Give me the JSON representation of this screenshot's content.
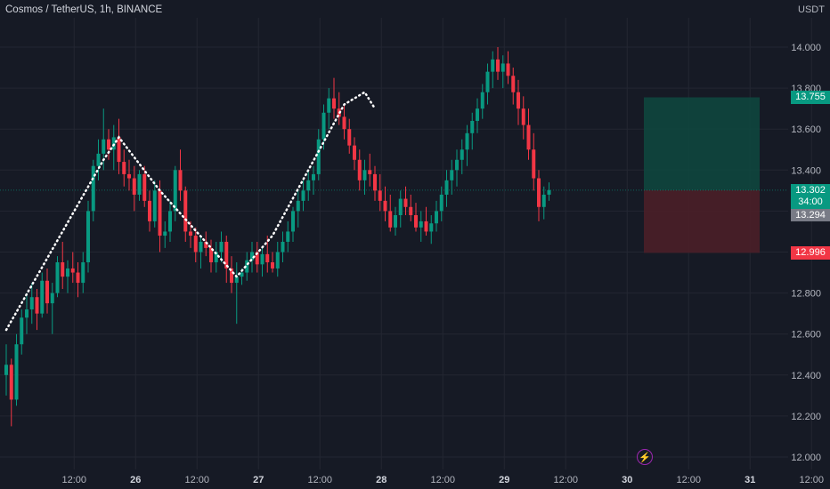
{
  "header": {
    "title": "Cosmos / TetherUS, 1h, BINANCE",
    "unit": "USDT"
  },
  "colors": {
    "bg": "#161a25",
    "grid": "#232632",
    "up": "#089981",
    "down": "#f23645",
    "zone_profit": "#0e4940",
    "zone_loss": "#4a1f28",
    "path": "#ffffff"
  },
  "icons": {
    "alert": "lightning-bolt-icon"
  },
  "price_labels": {
    "current": "13.302",
    "countdown": "34:00",
    "last_close": "13.294",
    "target": "13.755",
    "stop": "12.996"
  },
  "chart_data": {
    "type": "candlestick",
    "title": "Cosmos / TetherUS, 1h, BINANCE",
    "ylabel": "USDT",
    "ylim": [
      11.98,
      14.15
    ],
    "y_ticks": [
      "14.000",
      "13.800",
      "13.600",
      "13.400",
      "13.200",
      "13.000",
      "12.800",
      "12.600",
      "12.400",
      "12.200",
      "12.000"
    ],
    "x_ticks": [
      {
        "label": "12:00",
        "bar": 7
      },
      {
        "label": "26",
        "bar": 19
      },
      {
        "label": "12:00",
        "bar": 31
      },
      {
        "label": "27",
        "bar": 43
      },
      {
        "label": "12:00",
        "bar": 55
      },
      {
        "label": "28",
        "bar": 67
      },
      {
        "label": "12:00",
        "bar": 79
      },
      {
        "label": "29",
        "bar": 91
      },
      {
        "label": "12:00",
        "bar": 103
      },
      {
        "label": "30",
        "bar": 115
      },
      {
        "label": "12:00",
        "bar": 127
      },
      {
        "label": "31",
        "bar": 139
      },
      {
        "label": "12:00",
        "bar": 151
      }
    ],
    "bold_ticks": [
      "26",
      "27",
      "28",
      "29",
      "30",
      "31"
    ],
    "candles": [
      [
        12.4,
        12.55,
        12.3,
        12.45
      ],
      [
        12.45,
        12.48,
        12.15,
        12.28
      ],
      [
        12.28,
        12.6,
        12.25,
        12.55
      ],
      [
        12.55,
        12.72,
        12.5,
        12.68
      ],
      [
        12.68,
        12.8,
        12.6,
        12.72
      ],
      [
        12.72,
        12.85,
        12.65,
        12.78
      ],
      [
        12.78,
        12.82,
        12.62,
        12.7
      ],
      [
        12.7,
        12.9,
        12.68,
        12.86
      ],
      [
        12.86,
        12.92,
        12.7,
        12.75
      ],
      [
        12.75,
        12.85,
        12.6,
        12.8
      ],
      [
        12.8,
        12.98,
        12.78,
        12.95
      ],
      [
        12.95,
        13.05,
        12.82,
        12.88
      ],
      [
        12.88,
        12.96,
        12.8,
        12.92
      ],
      [
        12.92,
        13.0,
        12.85,
        12.9
      ],
      [
        12.9,
        12.95,
        12.78,
        12.85
      ],
      [
        12.85,
        13.0,
        12.8,
        12.95
      ],
      [
        12.95,
        13.25,
        12.9,
        13.2
      ],
      [
        13.2,
        13.45,
        13.15,
        13.42
      ],
      [
        13.42,
        13.55,
        13.35,
        13.48
      ],
      [
        13.48,
        13.7,
        13.4,
        13.55
      ],
      [
        13.55,
        13.6,
        13.45,
        13.5
      ],
      [
        13.5,
        13.62,
        13.4,
        13.56
      ],
      [
        13.56,
        13.65,
        13.38,
        13.44
      ],
      [
        13.44,
        13.5,
        13.32,
        13.38
      ],
      [
        13.38,
        13.45,
        13.3,
        13.36
      ],
      [
        13.36,
        13.42,
        13.2,
        13.28
      ],
      [
        13.28,
        13.4,
        13.25,
        13.38
      ],
      [
        13.38,
        13.42,
        13.22,
        13.25
      ],
      [
        13.25,
        13.3,
        13.1,
        13.15
      ],
      [
        13.15,
        13.35,
        13.12,
        13.3
      ],
      [
        13.3,
        13.35,
        13.0,
        13.08
      ],
      [
        13.08,
        13.15,
        13.02,
        13.1
      ],
      [
        13.1,
        13.25,
        13.05,
        13.2
      ],
      [
        13.2,
        13.42,
        13.15,
        13.4
      ],
      [
        13.4,
        13.5,
        13.25,
        13.3
      ],
      [
        13.3,
        13.32,
        13.05,
        13.1
      ],
      [
        13.1,
        13.15,
        13.02,
        13.08
      ],
      [
        13.08,
        13.12,
        12.95,
        13.0
      ],
      [
        13.0,
        13.08,
        12.92,
        13.05
      ],
      [
        13.05,
        13.1,
        12.98,
        13.02
      ],
      [
        13.02,
        13.06,
        12.9,
        12.95
      ],
      [
        12.95,
        13.05,
        12.9,
        13.0
      ],
      [
        13.0,
        13.1,
        12.95,
        13.05
      ],
      [
        13.05,
        13.08,
        12.85,
        12.92
      ],
      [
        12.92,
        12.98,
        12.8,
        12.85
      ],
      [
        12.85,
        12.95,
        12.65,
        12.88
      ],
      [
        12.88,
        12.92,
        12.84,
        12.9
      ],
      [
        12.9,
        13.0,
        12.86,
        12.96
      ],
      [
        12.96,
        13.05,
        12.9,
        13.0
      ],
      [
        13.0,
        13.05,
        12.9,
        12.94
      ],
      [
        12.94,
        13.02,
        12.88,
        12.99
      ],
      [
        12.99,
        13.08,
        12.9,
        12.95
      ],
      [
        12.95,
        13.0,
        12.9,
        12.92
      ],
      [
        12.92,
        13.05,
        12.88,
        13.0
      ],
      [
        13.0,
        13.1,
        12.95,
        13.05
      ],
      [
        13.05,
        13.15,
        13.0,
        13.1
      ],
      [
        13.1,
        13.22,
        13.05,
        13.2
      ],
      [
        13.2,
        13.3,
        13.12,
        13.25
      ],
      [
        13.25,
        13.35,
        13.2,
        13.3
      ],
      [
        13.3,
        13.4,
        13.25,
        13.35
      ],
      [
        13.35,
        13.42,
        13.28,
        13.38
      ],
      [
        13.38,
        13.6,
        13.35,
        13.55
      ],
      [
        13.55,
        13.72,
        13.5,
        13.68
      ],
      [
        13.68,
        13.8,
        13.6,
        13.75
      ],
      [
        13.75,
        13.85,
        13.65,
        13.7
      ],
      [
        13.7,
        13.78,
        13.62,
        13.66
      ],
      [
        13.66,
        13.72,
        13.55,
        13.6
      ],
      [
        13.6,
        13.65,
        13.48,
        13.52
      ],
      [
        13.52,
        13.56,
        13.4,
        13.45
      ],
      [
        13.45,
        13.5,
        13.3,
        13.35
      ],
      [
        13.35,
        13.45,
        13.28,
        13.4
      ],
      [
        13.4,
        13.48,
        13.32,
        13.38
      ],
      [
        13.38,
        13.42,
        13.25,
        13.3
      ],
      [
        13.3,
        13.38,
        13.2,
        13.25
      ],
      [
        13.25,
        13.32,
        13.15,
        13.2
      ],
      [
        13.2,
        13.28,
        13.1,
        13.12
      ],
      [
        13.12,
        13.22,
        13.08,
        13.18
      ],
      [
        13.18,
        13.3,
        13.12,
        13.26
      ],
      [
        13.26,
        13.32,
        13.18,
        13.22
      ],
      [
        13.22,
        13.28,
        13.15,
        13.18
      ],
      [
        13.18,
        13.24,
        13.1,
        13.12
      ],
      [
        13.12,
        13.2,
        13.05,
        13.15
      ],
      [
        13.15,
        13.22,
        13.08,
        13.1
      ],
      [
        13.1,
        13.18,
        13.04,
        13.14
      ],
      [
        13.14,
        13.25,
        13.1,
        13.2
      ],
      [
        13.2,
        13.32,
        13.15,
        13.28
      ],
      [
        13.28,
        13.4,
        13.22,
        13.35
      ],
      [
        13.35,
        13.45,
        13.28,
        13.4
      ],
      [
        13.4,
        13.5,
        13.32,
        13.45
      ],
      [
        13.45,
        13.55,
        13.38,
        13.5
      ],
      [
        13.5,
        13.62,
        13.42,
        13.58
      ],
      [
        13.58,
        13.68,
        13.5,
        13.64
      ],
      [
        13.64,
        13.75,
        13.58,
        13.7
      ],
      [
        13.7,
        13.82,
        13.65,
        13.78
      ],
      [
        13.78,
        13.92,
        13.72,
        13.88
      ],
      [
        13.88,
        13.98,
        13.8,
        13.94
      ],
      [
        13.94,
        14.0,
        13.84,
        13.88
      ],
      [
        13.88,
        13.96,
        13.8,
        13.92
      ],
      [
        13.92,
        13.98,
        13.82,
        13.86
      ],
      [
        13.86,
        13.9,
        13.72,
        13.78
      ],
      [
        13.78,
        13.84,
        13.62,
        13.7
      ],
      [
        13.7,
        13.76,
        13.55,
        13.62
      ],
      [
        13.62,
        13.7,
        13.45,
        13.5
      ],
      [
        13.5,
        13.58,
        13.3,
        13.36
      ],
      [
        13.36,
        13.4,
        13.15,
        13.22
      ],
      [
        13.22,
        13.32,
        13.16,
        13.28
      ],
      [
        13.28,
        13.34,
        13.25,
        13.302
      ]
    ],
    "trade_zone": {
      "entry": 13.302,
      "target": 13.755,
      "stop": 12.996,
      "start_bar": 124,
      "end_bar": 148
    },
    "path_points": [
      [
        0,
        12.62
      ],
      [
        19,
        13.45
      ],
      [
        22,
        13.56
      ],
      [
        30,
        13.3
      ],
      [
        45,
        12.88
      ],
      [
        52,
        13.08
      ],
      [
        66,
        13.72
      ],
      [
        70,
        13.78
      ],
      [
        72,
        13.7
      ]
    ]
  }
}
